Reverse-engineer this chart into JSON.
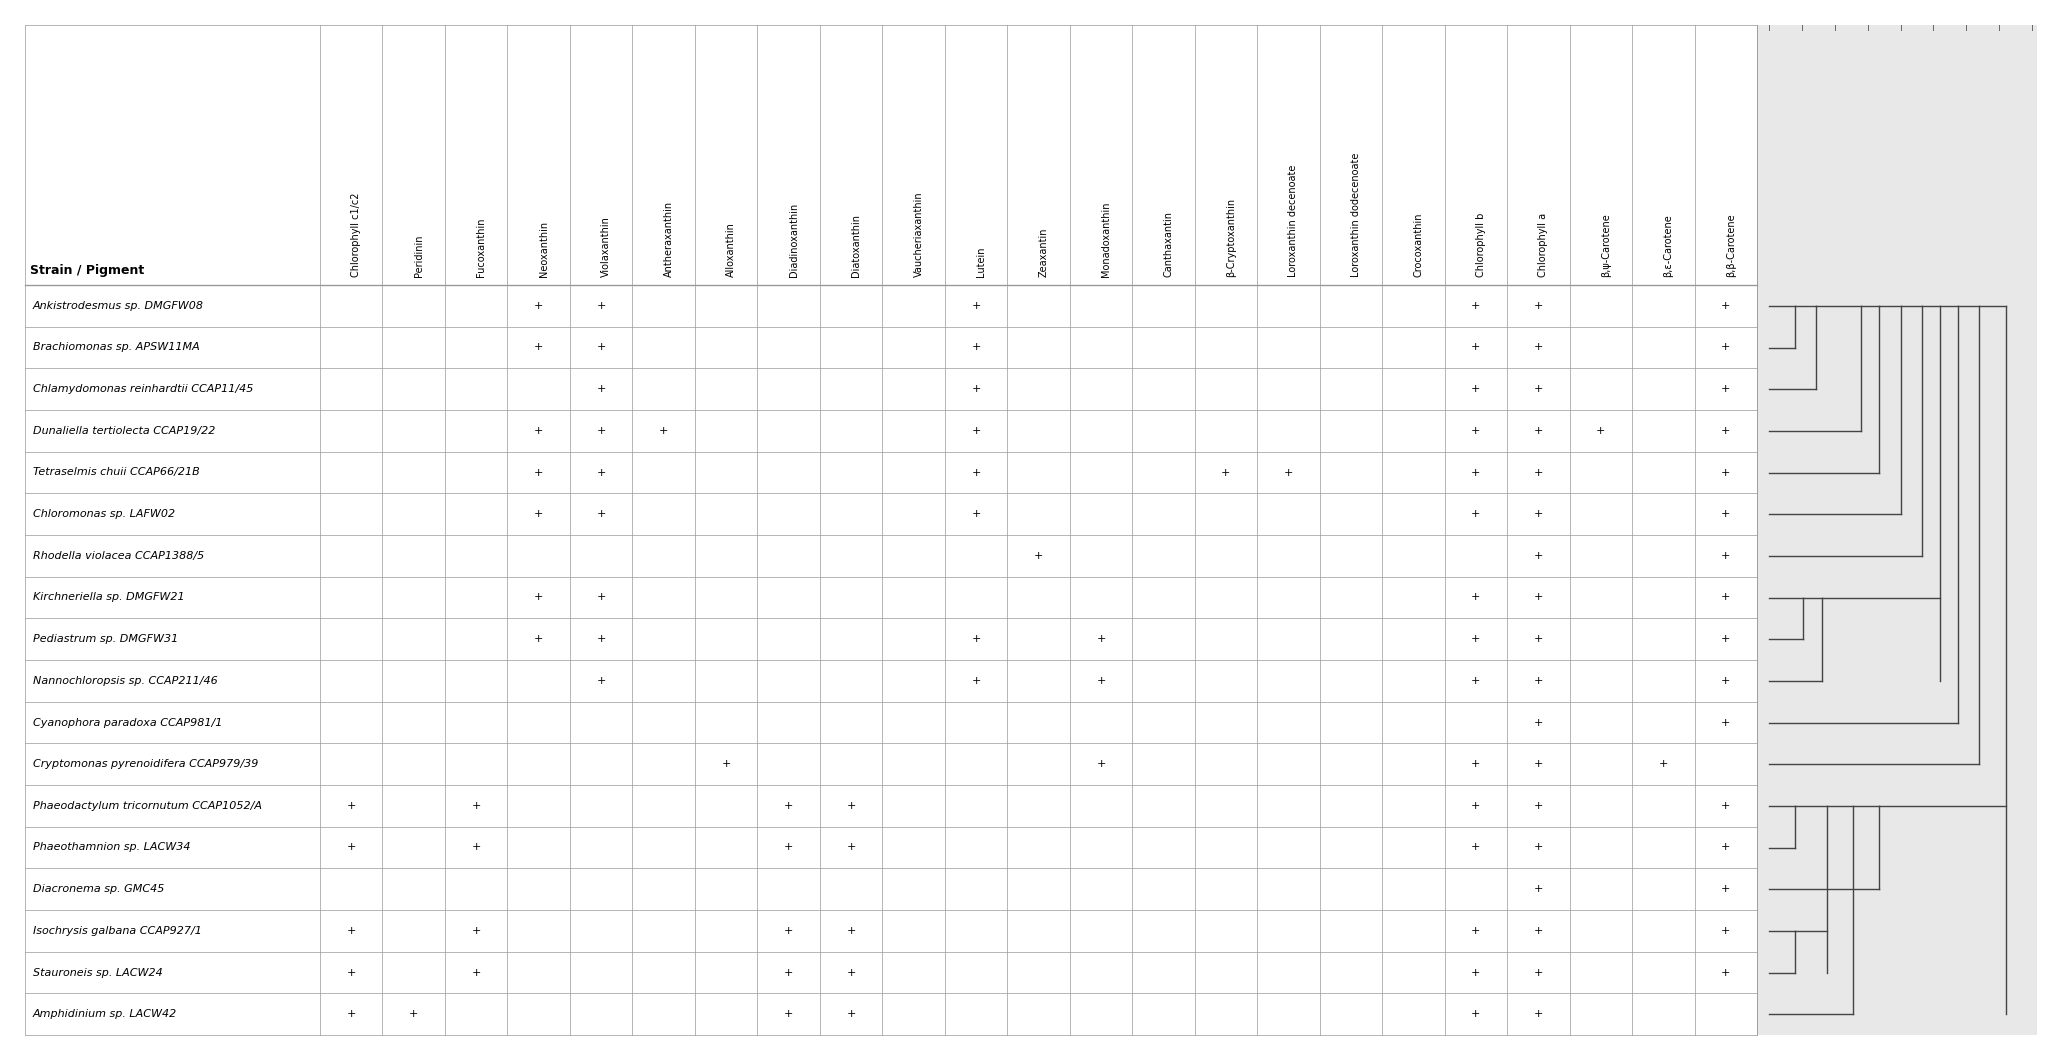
{
  "strains": [
    "Ankistrodesmus sp. DMGFW08",
    "Brachiomonas sp. APSW11MA",
    "Chlamydomonas reinhardtii CCAP11/45",
    "Dunaliella tertiolecta CCAP19/22",
    "Tetraselmis chuii CCAP66/21B",
    "Chloromonas sp. LAFW02",
    "Rhodella violacea CCAP1388/5",
    "Kirchneriella sp. DMGFW21",
    "Pediastrum sp. DMGFW31",
    "Nannochloropsis sp. CCAP211/46",
    "Cyanophora paradoxa CCAP981/1",
    "Cryptomonas pyrenoidifera CCAP979/39",
    "Phaeodactylum tricornutum CCAP1052/A",
    "Phaeothamnion sp. LACW34",
    "Diacronema sp. GMC45",
    "Isochrysis galbana CCAP927/1",
    "Stauroneis sp. LACW24",
    "Amphidinium sp. LACW42"
  ],
  "pigments": [
    "Chlorophyll c1/c2",
    "Peridinin",
    "Fucoxanthin",
    "Neoxanthin",
    "Violaxanthin",
    "Antheraxanthin",
    "Alloxanthin",
    "Diadinoxanthin",
    "Diatoxanthin",
    "Vaucheriaxanthin",
    "Lutein",
    "Zeaxantin",
    "Monadoxanthin",
    "Canthaxantin",
    "β-Cryptoxanthin",
    "Loroxanthin decenoate",
    "Loroxanthin dodecenoate",
    "Crocoxanthin",
    "Chlorophyll b",
    "Chlorophyll a",
    "β,ψ-Carotene",
    "β,ε-Carotene",
    "β,β-Carotene"
  ],
  "presence": [
    [
      0,
      0,
      0,
      1,
      1,
      0,
      0,
      0,
      0,
      0,
      1,
      0,
      0,
      0,
      0,
      0,
      0,
      0,
      1,
      1,
      0,
      0,
      1
    ],
    [
      0,
      0,
      0,
      1,
      1,
      0,
      0,
      0,
      0,
      0,
      1,
      0,
      0,
      0,
      0,
      0,
      0,
      0,
      1,
      1,
      0,
      0,
      1
    ],
    [
      0,
      0,
      0,
      0,
      1,
      0,
      0,
      0,
      0,
      0,
      1,
      0,
      0,
      0,
      0,
      0,
      0,
      0,
      1,
      1,
      0,
      0,
      1
    ],
    [
      0,
      0,
      0,
      1,
      1,
      1,
      0,
      0,
      0,
      0,
      1,
      0,
      0,
      0,
      0,
      0,
      0,
      0,
      1,
      1,
      1,
      0,
      1
    ],
    [
      0,
      0,
      0,
      1,
      1,
      0,
      0,
      0,
      0,
      0,
      1,
      0,
      0,
      0,
      1,
      1,
      0,
      0,
      1,
      1,
      0,
      0,
      1
    ],
    [
      0,
      0,
      0,
      1,
      1,
      0,
      0,
      0,
      0,
      0,
      1,
      0,
      0,
      0,
      0,
      0,
      0,
      0,
      1,
      1,
      0,
      0,
      1
    ],
    [
      0,
      0,
      0,
      0,
      0,
      0,
      0,
      0,
      0,
      0,
      0,
      1,
      0,
      0,
      0,
      0,
      0,
      0,
      0,
      1,
      0,
      0,
      1
    ],
    [
      0,
      0,
      0,
      1,
      1,
      0,
      0,
      0,
      0,
      0,
      0,
      0,
      0,
      0,
      0,
      0,
      0,
      0,
      1,
      1,
      0,
      0,
      1
    ],
    [
      0,
      0,
      0,
      1,
      1,
      0,
      0,
      0,
      0,
      0,
      1,
      0,
      1,
      0,
      0,
      0,
      0,
      0,
      1,
      1,
      0,
      0,
      1
    ],
    [
      0,
      0,
      0,
      0,
      1,
      0,
      0,
      0,
      0,
      0,
      1,
      0,
      1,
      0,
      0,
      0,
      0,
      0,
      1,
      1,
      0,
      0,
      1
    ],
    [
      0,
      0,
      0,
      0,
      0,
      0,
      0,
      0,
      0,
      0,
      0,
      0,
      0,
      0,
      0,
      0,
      0,
      0,
      0,
      1,
      0,
      0,
      1
    ],
    [
      0,
      0,
      0,
      0,
      0,
      0,
      1,
      0,
      0,
      0,
      0,
      0,
      1,
      0,
      0,
      0,
      0,
      0,
      1,
      1,
      0,
      1,
      0
    ],
    [
      1,
      0,
      1,
      0,
      0,
      0,
      0,
      1,
      1,
      0,
      0,
      0,
      0,
      0,
      0,
      0,
      0,
      0,
      1,
      1,
      0,
      0,
      1
    ],
    [
      1,
      0,
      1,
      0,
      0,
      0,
      0,
      1,
      1,
      0,
      0,
      0,
      0,
      0,
      0,
      0,
      0,
      0,
      1,
      1,
      0,
      0,
      1
    ],
    [
      0,
      0,
      0,
      0,
      0,
      0,
      0,
      0,
      0,
      0,
      0,
      0,
      0,
      0,
      0,
      0,
      0,
      0,
      0,
      1,
      0,
      0,
      1
    ],
    [
      1,
      0,
      1,
      0,
      0,
      0,
      0,
      1,
      1,
      0,
      0,
      0,
      0,
      0,
      0,
      0,
      0,
      0,
      1,
      1,
      0,
      0,
      1
    ],
    [
      1,
      0,
      1,
      0,
      0,
      0,
      0,
      1,
      1,
      0,
      0,
      0,
      0,
      0,
      0,
      0,
      0,
      0,
      1,
      1,
      0,
      0,
      1
    ],
    [
      1,
      1,
      0,
      0,
      0,
      0,
      0,
      1,
      1,
      0,
      0,
      0,
      0,
      0,
      0,
      0,
      0,
      0,
      1,
      1,
      0,
      0,
      0
    ]
  ],
  "strain_labels": [
    "Ankistrodesmus sp. DMGFW08",
    "Brachiomonas sp. APSW11MA",
    "Chlamydomonas reinhardtii CCAP11/45",
    "Dunaliella tertiolecta CCAP19/22",
    "Tetraselmis chuii CCAP66/21B",
    "Chloromonas sp. LAFW02",
    "Rhodella violacea CCAP1388/5",
    "Kirchneriella sp. DMGFW21",
    "Pediastrum sp. DMGFW31",
    "Nannochloropsis sp. CCAP211/46",
    "Cyanophora paradoxa CCAP981/1",
    "Cryptomonas pyrenoidifera CCAP979/39",
    "Phaeodactylum tricornutum CCAP1052/A",
    "Phaeothamnion sp. LACW34",
    "Diacronema sp. GMC45",
    "Isochrysis galbana CCAP927/1",
    "Stauroneis sp. LACW24",
    "Amphidinium sp. LACW42"
  ],
  "dend_color": "#444444",
  "dend_lw": 1.0,
  "grid_color": "#999999",
  "grid_lw": 0.5,
  "dendro_bg": "#e8e8e8",
  "header_label": "Strain / Pigment",
  "header_fontsize": 9,
  "strain_fontsize": 8,
  "pigment_fontsize": 7,
  "cell_fontsize": 8
}
